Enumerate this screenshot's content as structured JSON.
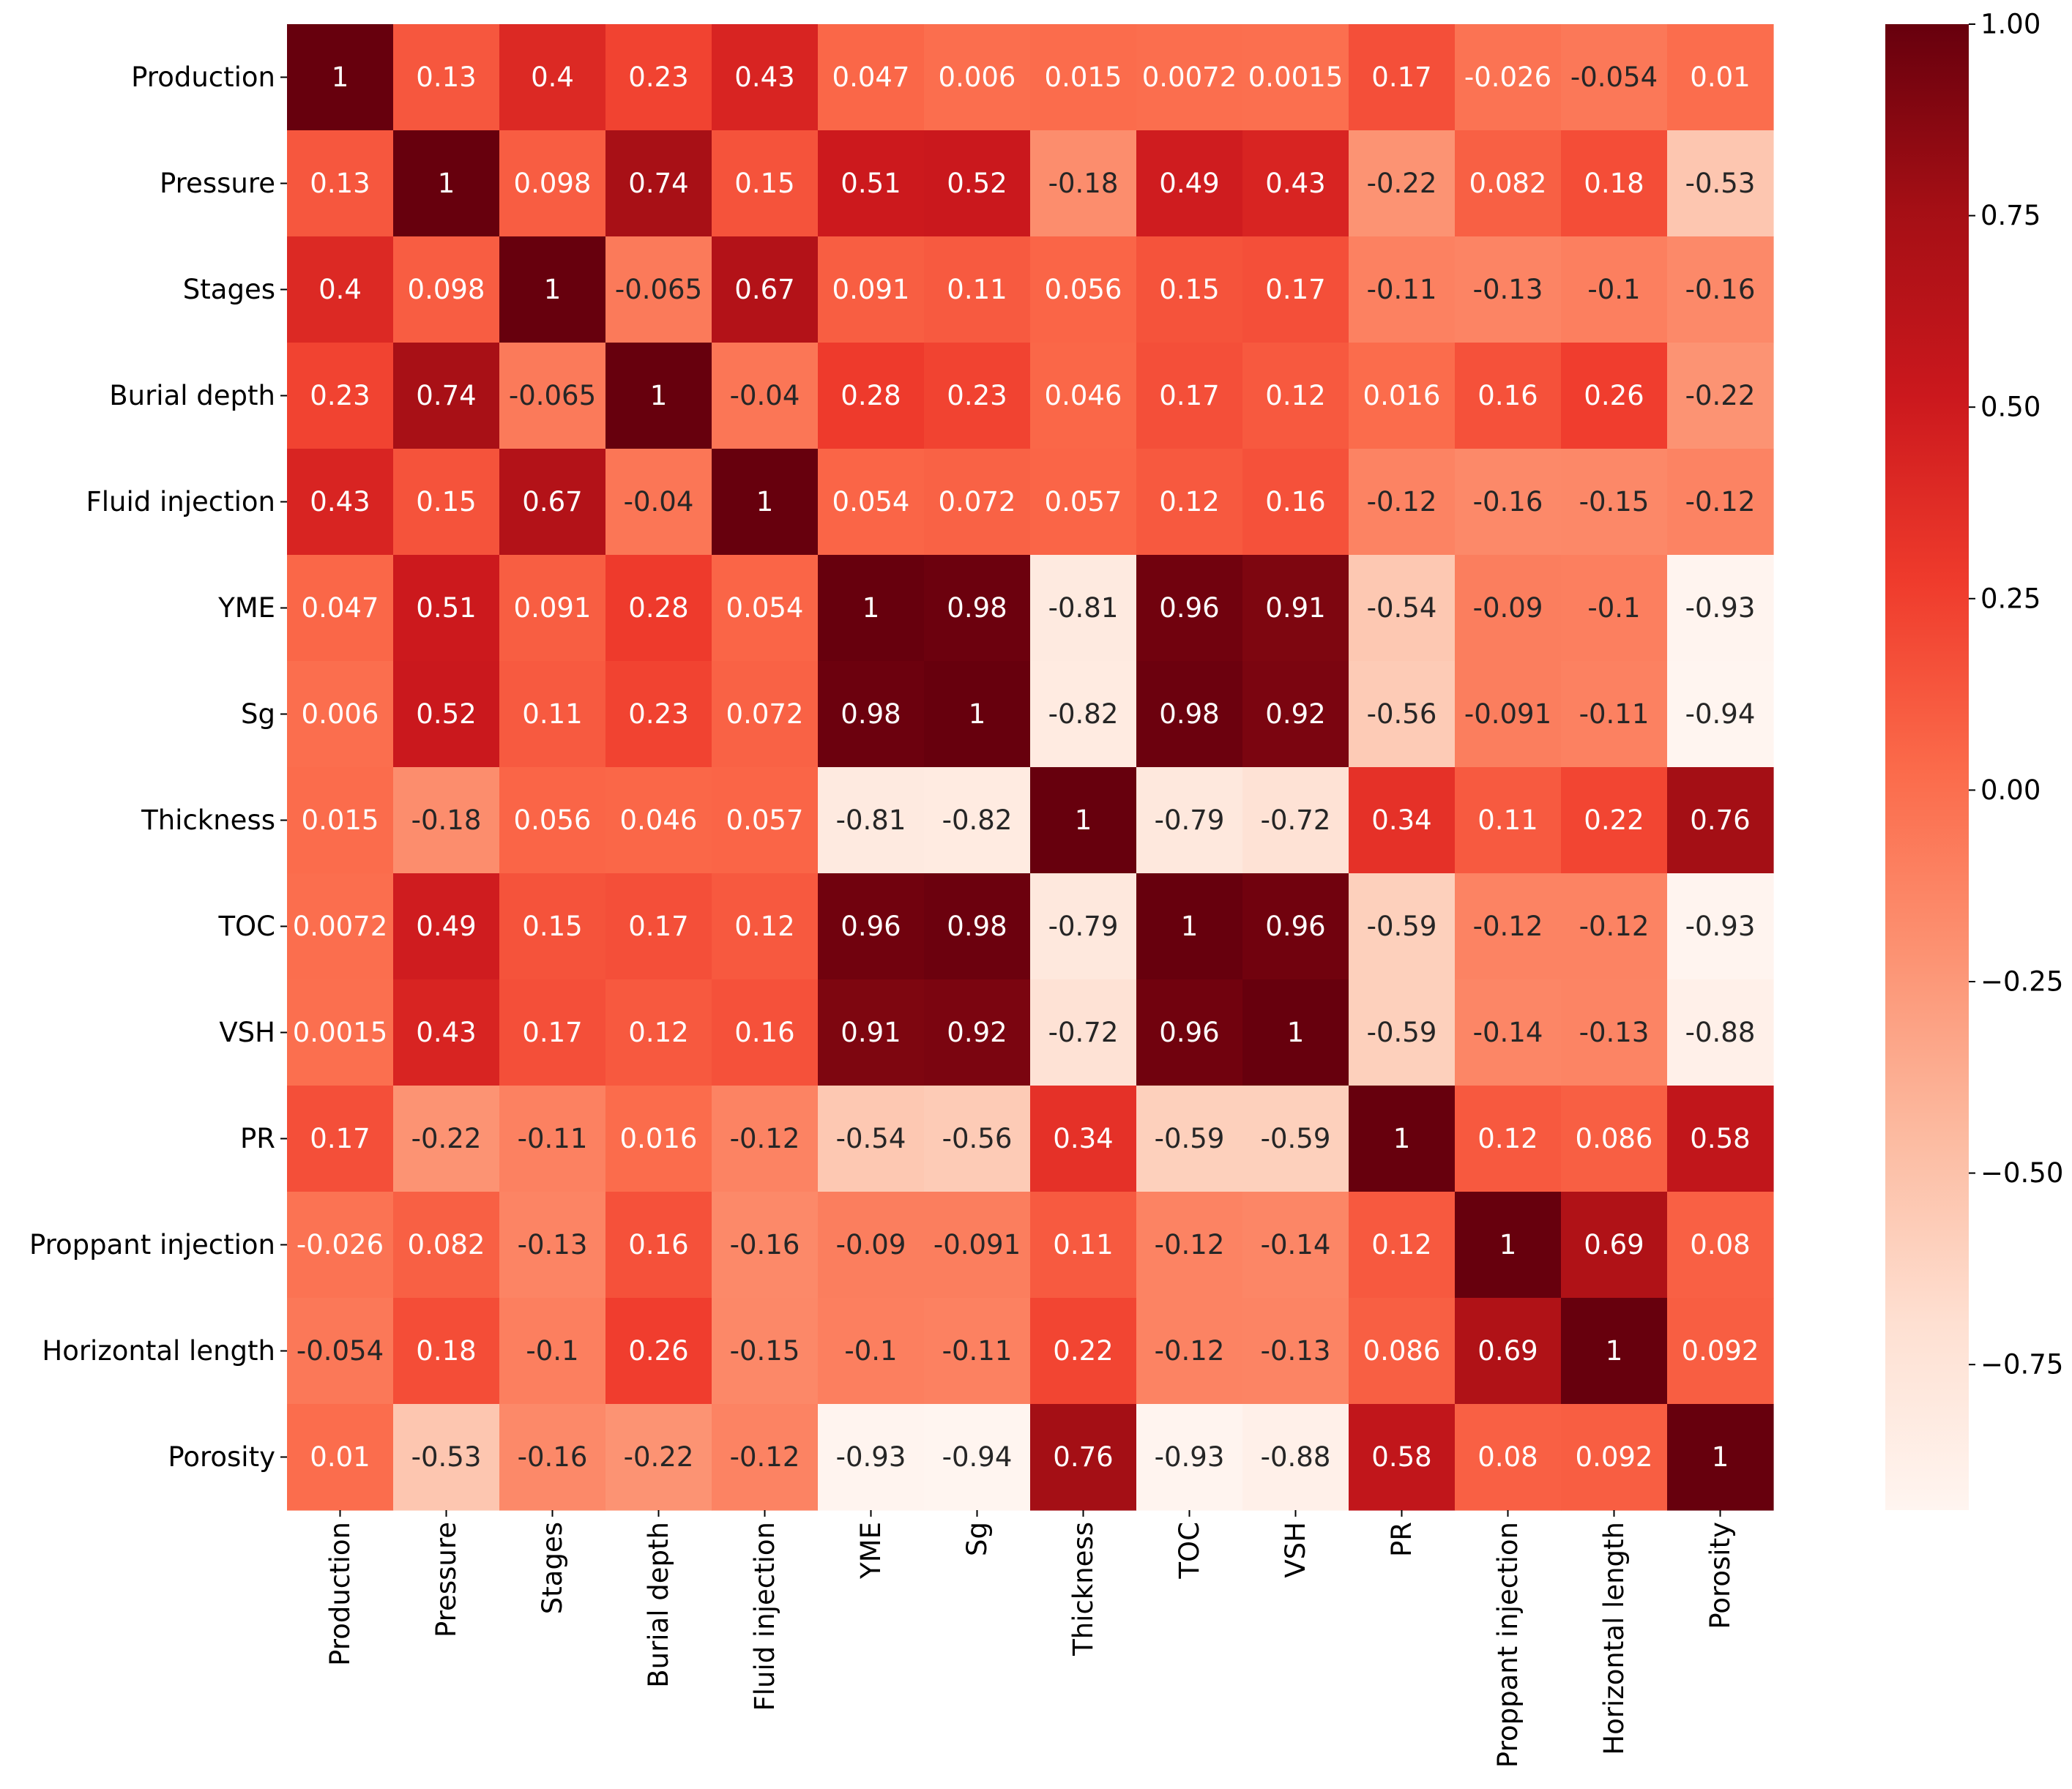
{
  "chart_data": {
    "type": "heatmap",
    "title": "",
    "xlabel": "",
    "ylabel": "",
    "colormap": "Reds",
    "colors": [
      "#fff5f0",
      "#fee0d2",
      "#fcbba1",
      "#fc9272",
      "#fb6a4a",
      "#ef3b2c",
      "#cb181d",
      "#a50f15",
      "#67000d"
    ],
    "vmin": -0.94,
    "vmax": 1.0,
    "labels": [
      "Production",
      "Pressure",
      "Stages",
      "Burial depth",
      "Fluid injection",
      "YME",
      "Sg",
      "Thickness",
      "TOC",
      "VSH",
      "PR",
      "Proppant injection",
      "Horizontal length",
      "Porosity"
    ],
    "values": [
      [
        1,
        0.13,
        0.4,
        0.23,
        0.43,
        0.047,
        0.006,
        0.015,
        0.0072,
        0.0015,
        0.17,
        -0.026,
        -0.054,
        0.01
      ],
      [
        0.13,
        1,
        0.098,
        0.74,
        0.15,
        0.51,
        0.52,
        -0.18,
        0.49,
        0.43,
        -0.22,
        0.082,
        0.18,
        -0.53
      ],
      [
        0.4,
        0.098,
        1,
        -0.065,
        0.67,
        0.091,
        0.11,
        0.056,
        0.15,
        0.17,
        -0.11,
        -0.13,
        -0.1,
        -0.16
      ],
      [
        0.23,
        0.74,
        -0.065,
        1,
        -0.04,
        0.28,
        0.23,
        0.046,
        0.17,
        0.12,
        0.016,
        0.16,
        0.26,
        -0.22
      ],
      [
        0.43,
        0.15,
        0.67,
        -0.04,
        1,
        0.054,
        0.072,
        0.057,
        0.12,
        0.16,
        -0.12,
        -0.16,
        -0.15,
        -0.12
      ],
      [
        0.047,
        0.51,
        0.091,
        0.28,
        0.054,
        1,
        0.98,
        -0.81,
        0.96,
        0.91,
        -0.54,
        -0.09,
        -0.1,
        -0.93
      ],
      [
        0.006,
        0.52,
        0.11,
        0.23,
        0.072,
        0.98,
        1,
        -0.82,
        0.98,
        0.92,
        -0.56,
        -0.091,
        -0.11,
        -0.94
      ],
      [
        0.015,
        -0.18,
        0.056,
        0.046,
        0.057,
        -0.81,
        -0.82,
        1,
        -0.79,
        -0.72,
        0.34,
        0.11,
        0.22,
        0.76
      ],
      [
        0.0072,
        0.49,
        0.15,
        0.17,
        0.12,
        0.96,
        0.98,
        -0.79,
        1,
        0.96,
        -0.59,
        -0.12,
        -0.12,
        -0.93
      ],
      [
        0.0015,
        0.43,
        0.17,
        0.12,
        0.16,
        0.91,
        0.92,
        -0.72,
        0.96,
        1,
        -0.59,
        -0.14,
        -0.13,
        -0.88
      ],
      [
        0.17,
        -0.22,
        -0.11,
        0.016,
        -0.12,
        -0.54,
        -0.56,
        0.34,
        -0.59,
        -0.59,
        1,
        0.12,
        0.086,
        0.58
      ],
      [
        -0.026,
        0.082,
        -0.13,
        0.16,
        -0.16,
        -0.09,
        -0.091,
        0.11,
        -0.12,
        -0.14,
        0.12,
        1,
        0.69,
        0.08
      ],
      [
        -0.054,
        0.18,
        -0.1,
        0.26,
        -0.15,
        -0.1,
        -0.11,
        0.22,
        -0.12,
        -0.13,
        0.086,
        0.69,
        1,
        0.092
      ],
      [
        0.01,
        -0.53,
        -0.16,
        -0.22,
        -0.12,
        -0.93,
        -0.94,
        0.76,
        -0.93,
        -0.88,
        0.58,
        0.08,
        0.092,
        1
      ]
    ],
    "colorbar": {
      "ticks": [
        1.0,
        0.75,
        0.5,
        0.25,
        0.0,
        -0.25,
        -0.5,
        -0.75
      ],
      "tick_labels": [
        "1.00",
        "0.75",
        "0.50",
        "0.25",
        "0.00",
        "−0.25",
        "−0.50",
        "−0.75"
      ]
    },
    "grid": false,
    "legend": "colorbar-right"
  }
}
